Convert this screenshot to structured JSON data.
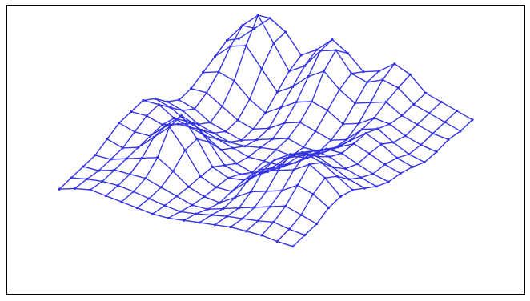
{
  "chart_data": {
    "type": "surface-mesh",
    "title": "",
    "xlabel": "",
    "ylabel": "",
    "zlabel": "",
    "axes_visible": false,
    "grid": false,
    "legend": "none",
    "grid_size": [
      16,
      16
    ],
    "mesh_color": "#3333e6",
    "z_values": [
      [
        0.55,
        0.7,
        0.85,
        0.75,
        0.55,
        0.65,
        0.8,
        0.7,
        0.55,
        0.6,
        0.72,
        0.65,
        0.5,
        0.45,
        0.4,
        0.35
      ],
      [
        0.6,
        0.8,
        0.95,
        0.7,
        0.45,
        0.55,
        0.75,
        0.8,
        0.6,
        0.55,
        0.62,
        0.58,
        0.45,
        0.4,
        0.35,
        0.3
      ],
      [
        0.5,
        0.65,
        0.7,
        0.5,
        0.3,
        0.4,
        0.55,
        0.65,
        0.5,
        0.4,
        0.45,
        0.5,
        0.4,
        0.35,
        0.3,
        0.28
      ],
      [
        0.4,
        0.45,
        0.4,
        0.25,
        0.15,
        0.25,
        0.35,
        0.4,
        0.35,
        0.25,
        0.3,
        0.4,
        0.38,
        0.3,
        0.25,
        0.22
      ],
      [
        0.3,
        0.3,
        0.2,
        0.1,
        0.05,
        0.1,
        0.2,
        0.25,
        0.2,
        0.15,
        0.2,
        0.35,
        0.4,
        0.3,
        0.22,
        0.18
      ],
      [
        0.25,
        0.2,
        0.1,
        0.05,
        0.0,
        0.05,
        0.1,
        0.15,
        0.1,
        0.1,
        0.18,
        0.3,
        0.42,
        0.35,
        0.25,
        0.2
      ],
      [
        0.3,
        0.25,
        0.15,
        0.1,
        0.05,
        0.05,
        0.08,
        0.1,
        0.08,
        0.1,
        0.2,
        0.3,
        0.38,
        0.32,
        0.25,
        0.2
      ],
      [
        0.4,
        0.35,
        0.25,
        0.2,
        0.15,
        0.1,
        0.05,
        0.05,
        0.05,
        0.12,
        0.25,
        0.35,
        0.35,
        0.28,
        0.22,
        0.18
      ],
      [
        0.45,
        0.45,
        0.35,
        0.3,
        0.25,
        0.15,
        0.05,
        0.0,
        0.05,
        0.15,
        0.3,
        0.4,
        0.38,
        0.3,
        0.25,
        0.2
      ],
      [
        0.4,
        0.4,
        0.35,
        0.4,
        0.45,
        0.3,
        0.1,
        0.05,
        0.08,
        0.2,
        0.35,
        0.45,
        0.45,
        0.38,
        0.3,
        0.25
      ],
      [
        0.35,
        0.3,
        0.3,
        0.45,
        0.6,
        0.4,
        0.15,
        0.08,
        0.1,
        0.25,
        0.4,
        0.5,
        0.55,
        0.5,
        0.4,
        0.3
      ],
      [
        0.25,
        0.2,
        0.25,
        0.4,
        0.55,
        0.35,
        0.12,
        0.05,
        0.05,
        0.2,
        0.35,
        0.4,
        0.45,
        0.55,
        0.45,
        0.3
      ],
      [
        0.15,
        0.15,
        0.2,
        0.25,
        0.3,
        0.2,
        0.08,
        0.02,
        0.0,
        0.1,
        0.2,
        0.25,
        0.3,
        0.4,
        0.35,
        0.25
      ],
      [
        0.1,
        0.1,
        0.15,
        0.15,
        0.15,
        0.1,
        0.05,
        0.0,
        0.0,
        0.05,
        0.1,
        0.15,
        0.2,
        0.25,
        0.2,
        0.15
      ],
      [
        0.05,
        0.08,
        0.1,
        0.1,
        0.08,
        0.05,
        0.02,
        0.0,
        0.02,
        0.05,
        0.08,
        0.1,
        0.12,
        0.15,
        0.12,
        0.1
      ],
      [
        0.0,
        0.05,
        0.08,
        0.06,
        0.04,
        0.02,
        0.0,
        0.0,
        0.02,
        0.04,
        0.06,
        0.08,
        0.08,
        0.08,
        0.06,
        0.05
      ]
    ]
  }
}
